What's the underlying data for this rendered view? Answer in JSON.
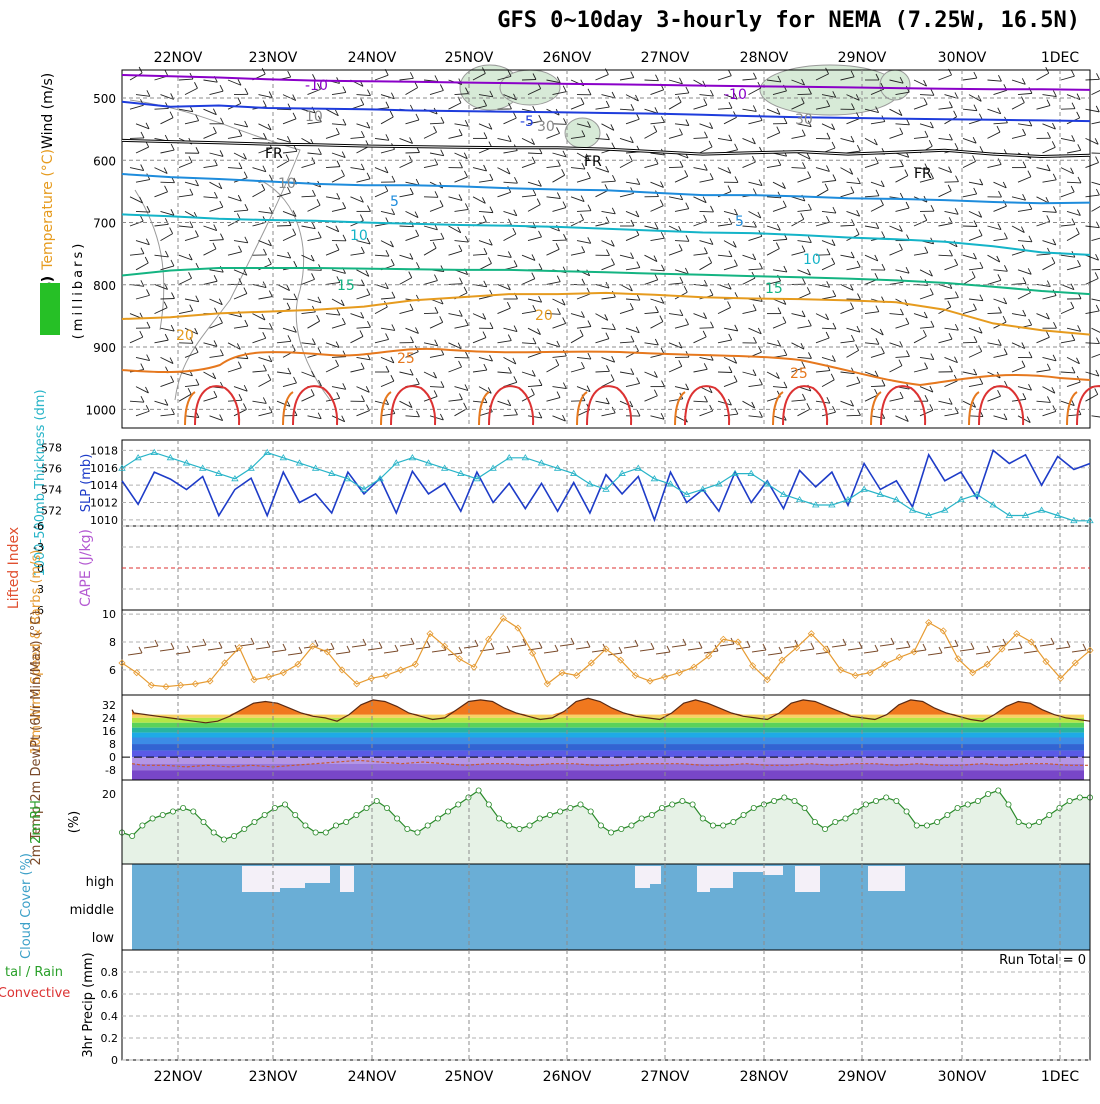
{
  "title": "GFS 0~10day 3-hourly for NEMA (7.25W, 16.5N)",
  "dates": [
    "22NOV",
    "23NOV",
    "24NOV",
    "25NOV",
    "26NOV",
    "27NOV",
    "28NOV",
    "29NOV",
    "30NOV",
    "1DEC"
  ],
  "colors": {
    "temp_m10": "#8a00c8",
    "temp_m5": "#1e3cdc",
    "temp_fr": "#000000",
    "temp_5": "#1e8cdc",
    "temp_10": "#14b4c8",
    "temp_15": "#14b482",
    "temp_20": "#e69b1e",
    "temp_25": "#e6781e",
    "temp_30": "#dc3232",
    "slp": "#1e3cc8",
    "thickness": "#28b4c8",
    "wind10": "#e69b32",
    "barbs": "#7a4a2a",
    "rh_line": "#2a8a2a",
    "rh_fill": "#e6f2e6",
    "cloud_fill": "#6aaed6",
    "cloud_gap": "#f4f0f8"
  },
  "chart_data": [
    {
      "type": "contour",
      "name": "upper",
      "ylabel_parts": [
        "RH (%)",
        "Temperature (°C)",
        "Wind (m/s)"
      ],
      "ylabel2": "(millibars)",
      "yticks": [
        500,
        600,
        700,
        800,
        900,
        1000
      ],
      "ylim": [
        455,
        1030
      ],
      "contour_labels": [
        "-10",
        "-10",
        "-5",
        "FR",
        "FR",
        "FR",
        "5",
        "5",
        "10",
        "10",
        "15",
        "15",
        "20",
        "20",
        "25",
        "25",
        "10",
        "10",
        "30",
        "30"
      ],
      "series": [
        {
          "name": "-10",
          "key": "temp_m10",
          "y": [
            463,
            465,
            467,
            470,
            472,
            473,
            474,
            475,
            476,
            477,
            478,
            479,
            480,
            481,
            482,
            483,
            484,
            485,
            486,
            486,
            487
          ]
        },
        {
          "name": "-5",
          "key": "temp_m5",
          "y": [
            506,
            514,
            512,
            516,
            517,
            518,
            520,
            521,
            522,
            523,
            524,
            525,
            527,
            529,
            531,
            532,
            533,
            534,
            535,
            536,
            537
          ]
        },
        {
          "name": "FR",
          "key": "temp_fr",
          "y": [
            568,
            570,
            572,
            574,
            575,
            577,
            578,
            579,
            580,
            580,
            582,
            586,
            590,
            588,
            586,
            590,
            587,
            584,
            590,
            594,
            592
          ]
        },
        {
          "name": "5",
          "key": "temp_5",
          "y": [
            622,
            627,
            630,
            634,
            638,
            640,
            640,
            642,
            645,
            647,
            648,
            652,
            656,
            656,
            658,
            661,
            662,
            664,
            667,
            669,
            668
          ]
        },
        {
          "name": "10",
          "key": "temp_10",
          "y": [
            687,
            690,
            694,
            696,
            697,
            700,
            702,
            704,
            705,
            707,
            710,
            713,
            716,
            717,
            720,
            724,
            727,
            731,
            738,
            748,
            752
          ]
        },
        {
          "name": "15",
          "key": "temp_15",
          "y": [
            785,
            777,
            773,
            773,
            773,
            774,
            775,
            776,
            776,
            778,
            780,
            782,
            784,
            786,
            788,
            790,
            793,
            797,
            803,
            810,
            815
          ]
        },
        {
          "name": "20",
          "key": "temp_20",
          "y": [
            855,
            852,
            846,
            843,
            840,
            835,
            825,
            820,
            815,
            815,
            813,
            816,
            820,
            822,
            823,
            825,
            828,
            840,
            862,
            873,
            880
          ]
        }
      ]
    },
    {
      "type": "line",
      "name": "slp-thickness",
      "ylabel_left": "1000-500mb Thickness (dm)",
      "ylabel_right": "SLP (mb)",
      "yticks_left": [
        572,
        574,
        576,
        578
      ],
      "yticks_right": [
        1010,
        1012,
        1014,
        1016,
        1018
      ],
      "ylim_left": [
        570.5,
        578.7
      ],
      "ylim_right": [
        1009.3,
        1019.2
      ],
      "series": [
        {
          "name": "SLP",
          "units": "mb",
          "values": [
            1014.5,
            1011.8,
            1015.5,
            1014.7,
            1013.5,
            1015.0,
            1010.5,
            1013.5,
            1014.8,
            1010.5,
            1015.5,
            1012.0,
            1013.0,
            1010.8,
            1015.5,
            1013.0,
            1014.8,
            1010.8,
            1015.6,
            1013.0,
            1014.2,
            1011.0,
            1015.5,
            1012.0,
            1014.2,
            1011.3,
            1014.2,
            1011.0,
            1014.3,
            1010.8,
            1015.2,
            1013.0,
            1015.0,
            1010.0,
            1015.5,
            1012.0,
            1013.5,
            1011.0,
            1015.5,
            1012.0,
            1014.5,
            1011.3,
            1015.7,
            1013.8,
            1015.5,
            1011.7,
            1016.5,
            1013.5,
            1014.5,
            1011.5,
            1017.5,
            1014.5,
            1015.5,
            1012.5,
            1018.0,
            1016.5,
            1017.5,
            1014.0,
            1017.3,
            1015.8,
            1016.5
          ]
        },
        {
          "name": "Thickness",
          "units": "dm",
          "values": [
            576.0,
            577.0,
            577.5,
            577.0,
            576.5,
            576.0,
            575.5,
            575.0,
            576.0,
            577.5,
            577.0,
            576.5,
            576.0,
            575.5,
            575.0,
            574.0,
            575.0,
            576.5,
            577.0,
            576.5,
            576.0,
            575.5,
            575.0,
            576.0,
            577.0,
            577.0,
            576.5,
            576.0,
            575.5,
            574.5,
            574.0,
            575.5,
            576.0,
            575.0,
            574.5,
            573.5,
            574.0,
            574.5,
            575.5,
            575.5,
            574.5,
            573.5,
            573.0,
            572.5,
            572.5,
            573.0,
            574.0,
            573.5,
            573.0,
            572.0,
            571.5,
            572.0,
            573.0,
            573.5,
            572.5,
            571.5,
            571.5,
            572.0,
            571.5,
            571.0,
            571.0
          ]
        }
      ]
    },
    {
      "type": "line",
      "name": "cape-li",
      "ylabel_left": "Lifted Index",
      "ylabel_right": "CAPE (J/kg)",
      "yticks": [
        -6,
        -3,
        0,
        3,
        6
      ],
      "ylim": [
        -6,
        6
      ],
      "zero_line": true
    },
    {
      "type": "line",
      "name": "wind10",
      "ylabel": "10m Wind Speed & Barbs (m/s)",
      "yticks": [
        6,
        8,
        10
      ],
      "ylim": [
        4.2,
        10.3
      ],
      "series": [
        {
          "name": "Speed",
          "units": "m/s",
          "values": [
            6.5,
            5.8,
            4.9,
            4.8,
            4.9,
            5.0,
            5.2,
            6.5,
            7.6,
            5.3,
            5.5,
            5.8,
            6.4,
            7.7,
            7.3,
            6.0,
            5.0,
            5.4,
            5.6,
            6.0,
            6.4,
            8.6,
            7.7,
            6.8,
            6.2,
            8.2,
            9.7,
            9.0,
            7.2,
            5.0,
            5.8,
            5.6,
            6.5,
            7.5,
            6.7,
            5.6,
            5.2,
            5.5,
            5.8,
            6.2,
            7.0,
            8.2,
            8.0,
            6.3,
            5.3,
            6.7,
            7.6,
            8.6,
            7.5,
            6.0,
            5.6,
            5.8,
            6.4,
            6.9,
            7.3,
            9.4,
            8.8,
            6.8,
            5.8,
            6.4,
            7.5,
            8.6,
            8.0,
            6.6,
            5.4,
            6.5,
            7.4
          ]
        }
      ]
    },
    {
      "type": "area",
      "name": "temp2m",
      "ylabel": "2m Temp 2m DewPt (6hr Min/Max) (°C)",
      "yticks": [
        -8,
        0,
        8,
        16,
        24,
        32
      ],
      "ylim": [
        -14,
        38
      ],
      "series": [
        {
          "name": "Temp",
          "units": "°C",
          "values": [
            29,
            27,
            26,
            25,
            24,
            23,
            22,
            21,
            22,
            25,
            29,
            33,
            34,
            33,
            30,
            27,
            25,
            24,
            22,
            26,
            32,
            35,
            34,
            31,
            27,
            25,
            23,
            24,
            29,
            34,
            35,
            34,
            30,
            27,
            25,
            23,
            24,
            28,
            34,
            36,
            34,
            30,
            27,
            25,
            24,
            23,
            27,
            33,
            35,
            33,
            30,
            27,
            25,
            24,
            23,
            27,
            33,
            35,
            34,
            31,
            28,
            25,
            24,
            23,
            26,
            32,
            35,
            34,
            30,
            27,
            25,
            23,
            22,
            26,
            31,
            34,
            33,
            29,
            26,
            24,
            23,
            22
          ]
        },
        {
          "name": "DewPt",
          "units": "°C",
          "values": [
            -4,
            -5,
            -5,
            -6,
            -5,
            -6,
            -5,
            -6,
            -5,
            -4,
            -3,
            -2,
            -3,
            -4,
            -3,
            -4,
            -5,
            -4,
            -4,
            -5,
            -4,
            -4,
            -5,
            -5,
            -4,
            -4,
            -4,
            -5,
            -5,
            -4,
            -5,
            -5,
            -4,
            -5,
            -4,
            -4,
            -5,
            -4,
            -5,
            -5,
            -4,
            -5,
            -4,
            -4,
            -5,
            -5
          ]
        }
      ]
    },
    {
      "type": "area",
      "name": "rh2m",
      "ylabel": "2m RH (%)",
      "yticks": [
        20
      ],
      "ylim": [
        0,
        24
      ],
      "series": [
        {
          "name": "RH",
          "units": "%",
          "values": [
            9,
            8,
            11,
            13,
            14,
            15,
            16,
            15,
            12,
            9,
            7,
            8,
            10,
            12,
            14,
            16,
            17,
            14,
            11,
            9,
            9,
            11,
            12,
            14,
            16,
            18,
            16,
            13,
            10,
            9,
            11,
            13,
            15,
            17,
            19,
            21,
            17,
            13,
            11,
            10,
            11,
            13,
            14,
            15,
            16,
            17,
            15,
            11,
            9,
            10,
            11,
            13,
            14,
            16,
            17,
            18,
            17,
            13,
            11,
            11,
            12,
            14,
            16,
            17,
            18,
            19,
            18,
            16,
            12,
            10,
            12,
            13,
            15,
            17,
            18,
            19,
            18,
            15,
            11,
            11,
            12,
            14,
            16,
            17,
            18,
            20,
            21,
            17,
            12,
            11,
            12,
            14,
            16,
            18,
            19,
            19
          ]
        }
      ]
    },
    {
      "type": "bar",
      "name": "cloud",
      "ylabel": "Cloud Cover (%)",
      "levels": [
        "high",
        "middle",
        "low"
      ]
    },
    {
      "type": "line",
      "name": "precip",
      "ylabel_left": "Total / Rain Convective",
      "ylabel_right": "3hr Precip (mm)",
      "yticks": [
        "0",
        "0.2",
        "0.4",
        "0.6",
        "0.8"
      ],
      "ylim": [
        0,
        1
      ],
      "run_total": "Run Total = 0"
    }
  ]
}
